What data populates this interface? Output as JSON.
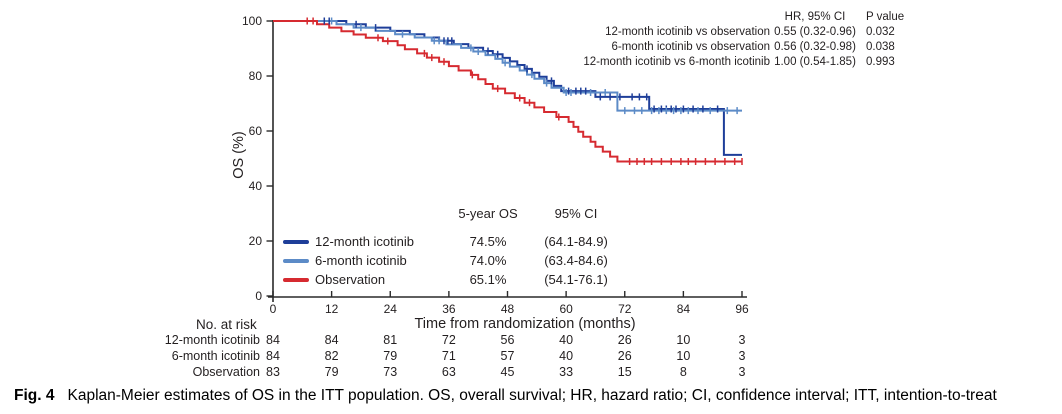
{
  "figure": {
    "caption_label": "Fig. 4",
    "caption_text": "Kaplan-Meier estimates of OS in the ITT population. OS, overall survival; HR, hazard ratio; CI, confidence interval; ITT, intention-to-treat"
  },
  "hr_table": {
    "col_hr": "HR, 95% CI",
    "col_p": "P value",
    "rows": [
      {
        "label": "12-month icotinib vs observation",
        "hr": "0.55 (0.32-0.96)",
        "p": "0.032"
      },
      {
        "label": "6-month icotinib vs observation",
        "hr": "0.56 (0.32-0.98)",
        "p": "0.038"
      },
      {
        "label": "12-month icotinib vs 6-month icotinib",
        "hr": "1.00 (0.54-1.85)",
        "p": "0.993"
      }
    ]
  },
  "legend": {
    "col_os": "5-year OS",
    "col_ci": "95% CI",
    "rows": [
      {
        "label": "12-month icotinib",
        "os": "74.5%",
        "ci": "(64.1-84.9)",
        "color": "#1e3e99"
      },
      {
        "label": "6-month icotinib",
        "os": "74.0%",
        "ci": "(63.4-84.6)",
        "color": "#5c8bc7"
      },
      {
        "label": "Observation",
        "os": "65.1%",
        "ci": "(54.1-76.1)",
        "color": "#d62a30"
      }
    ]
  },
  "at_risk": {
    "title": "No. at risk",
    "rows": [
      {
        "label": "12-month icotinib",
        "counts": [
          84,
          84,
          81,
          72,
          56,
          40,
          26,
          10,
          3
        ]
      },
      {
        "label": "6-month icotinib",
        "counts": [
          84,
          82,
          79,
          71,
          57,
          40,
          26,
          10,
          3
        ]
      },
      {
        "label": "Observation",
        "counts": [
          83,
          79,
          73,
          63,
          45,
          33,
          15,
          8,
          3
        ]
      }
    ]
  },
  "chart_data": {
    "type": "line",
    "subtype": "kaplan-meier-step",
    "title": "",
    "xlabel": "Time from randomization (months)",
    "ylabel": "OS (%)",
    "xlim": [
      0,
      96
    ],
    "ylim": [
      0,
      100
    ],
    "x_ticks": [
      0,
      12,
      24,
      36,
      48,
      60,
      72,
      84,
      96
    ],
    "y_ticks": [
      0,
      20,
      40,
      60,
      80,
      100
    ],
    "grid": false,
    "legend_position": "inside-lower-left",
    "series": [
      {
        "name": "12-month icotinib",
        "color": "#1e3e99",
        "five_year_os": 74.5,
        "drops": [
          [
            15,
            98.8
          ],
          [
            19,
            97.6
          ],
          [
            24,
            96.4
          ],
          [
            28,
            95.2
          ],
          [
            31,
            94
          ],
          [
            34,
            92.8
          ],
          [
            37,
            91.6
          ],
          [
            40,
            90.3
          ],
          [
            43,
            89.1
          ],
          [
            45,
            87.9
          ],
          [
            47,
            86.6
          ],
          [
            48.5,
            85.3
          ],
          [
            50,
            84
          ],
          [
            51.5,
            82.6
          ],
          [
            53,
            81.2
          ],
          [
            54.5,
            79.7
          ],
          [
            56,
            78.2
          ],
          [
            57.5,
            76.4
          ],
          [
            59,
            74.5
          ],
          [
            66,
            72.4
          ],
          [
            77,
            68
          ],
          [
            92.3,
            51.3
          ]
        ],
        "censors": [
          10.5,
          11.5,
          17,
          21,
          35,
          35.8,
          36.6,
          44,
          46,
          52,
          57,
          60.5,
          62,
          63,
          64,
          67,
          69,
          71,
          73.5,
          75,
          76.5,
          78,
          79.5,
          80.5,
          81.5,
          82.5,
          84,
          86,
          88,
          91
        ]
      },
      {
        "name": "6-month icotinib",
        "color": "#5c8bc7",
        "five_year_os": 74.0,
        "drops": [
          [
            13,
            98.8
          ],
          [
            16.5,
            97.6
          ],
          [
            21,
            96.4
          ],
          [
            25,
            95.2
          ],
          [
            29,
            94
          ],
          [
            32.5,
            92.8
          ],
          [
            35.5,
            91.5
          ],
          [
            38.5,
            90.2
          ],
          [
            41,
            88.9
          ],
          [
            43.5,
            87.6
          ],
          [
            45.5,
            86.2
          ],
          [
            47,
            84.8
          ],
          [
            48.5,
            83.4
          ],
          [
            50.5,
            82
          ],
          [
            52,
            80.5
          ],
          [
            53.5,
            79
          ],
          [
            55.5,
            77.4
          ],
          [
            57,
            75.7
          ],
          [
            59.5,
            74
          ],
          [
            70.5,
            67.4
          ]
        ],
        "censors": [
          12,
          18,
          26.5,
          33,
          34,
          40.5,
          42,
          47.5,
          53,
          56,
          60,
          61,
          65,
          68,
          72,
          74,
          75.5,
          77.5,
          79,
          80.5,
          82,
          83.5,
          85,
          87,
          89.5,
          93,
          95
        ]
      },
      {
        "name": "Observation",
        "color": "#d62a30",
        "five_year_os": 65.1,
        "drops": [
          [
            9,
            98.8
          ],
          [
            11.5,
            97.6
          ],
          [
            14,
            96.3
          ],
          [
            16.5,
            95.1
          ],
          [
            19,
            93.9
          ],
          [
            22.5,
            92.7
          ],
          [
            25.5,
            91.2
          ],
          [
            27,
            89.7
          ],
          [
            29.5,
            88.2
          ],
          [
            31.5,
            86.7
          ],
          [
            34,
            85.2
          ],
          [
            36,
            83.6
          ],
          [
            38,
            82
          ],
          [
            40.5,
            80.4
          ],
          [
            42,
            78.8
          ],
          [
            43.5,
            77.1
          ],
          [
            45,
            75.4
          ],
          [
            47.5,
            73.7
          ],
          [
            49.5,
            72
          ],
          [
            51.5,
            70.3
          ],
          [
            53.5,
            68.6
          ],
          [
            55.5,
            66.9
          ],
          [
            58,
            65.1
          ],
          [
            60.5,
            63.3
          ],
          [
            61.5,
            61.5
          ],
          [
            62.5,
            59.7
          ],
          [
            63.5,
            57.9
          ],
          [
            65,
            56.1
          ],
          [
            66,
            54.3
          ],
          [
            67.5,
            52.5
          ],
          [
            69,
            50.7
          ],
          [
            70.5,
            48.9
          ]
        ],
        "censors": [
          7,
          8.2,
          21.5,
          23.5,
          31,
          32.5,
          35,
          40.8,
          46,
          50.5,
          52.5,
          58.5,
          73,
          74.5,
          76,
          77.5,
          79.5,
          81.5,
          83.5,
          85,
          86.5,
          88.5,
          90.5,
          92.5,
          94.5,
          96
        ]
      }
    ]
  },
  "colors": {
    "axis": "#2a2a2a",
    "text": "#231f20"
  }
}
